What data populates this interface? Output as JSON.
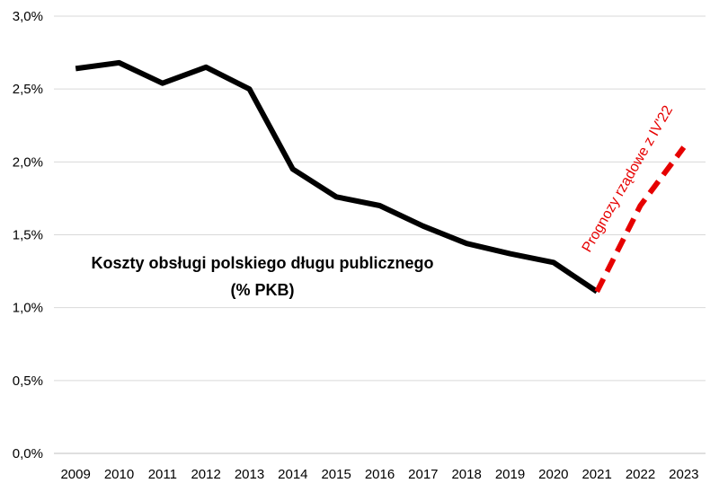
{
  "chart_data": {
    "type": "line",
    "title_lines": [
      "Koszty obsługi polskiego długu publicznego",
      "(% PKB)"
    ],
    "xlabel": "",
    "ylabel": "",
    "x": [
      "2009",
      "2010",
      "2011",
      "2012",
      "2013",
      "2014",
      "2015",
      "2016",
      "2017",
      "2018",
      "2019",
      "2020",
      "2021",
      "2022",
      "2023"
    ],
    "ylim": [
      0,
      3.0
    ],
    "y_ticks": [
      0.0,
      0.5,
      1.0,
      1.5,
      2.0,
      2.5,
      3.0
    ],
    "y_tick_labels": [
      "0,0%",
      "0,5%",
      "1,0%",
      "1,5%",
      "2,0%",
      "2,5%",
      "3,0%"
    ],
    "grid": true,
    "legend": "none",
    "series": [
      {
        "style": "solid",
        "color": "#000000",
        "x": [
          "2009",
          "2010",
          "2011",
          "2012",
          "2013",
          "2014",
          "2015",
          "2016",
          "2017",
          "2018",
          "2019",
          "2020",
          "2021"
        ],
        "values": [
          2.64,
          2.68,
          2.54,
          2.65,
          2.5,
          1.95,
          1.76,
          1.7,
          1.56,
          1.44,
          1.37,
          1.31,
          1.11
        ]
      },
      {
        "style": "dashed",
        "color": "#e60000",
        "x": [
          "2021",
          "2022",
          "2023"
        ],
        "values": [
          1.11,
          1.7,
          2.1
        ]
      }
    ],
    "annotation": {
      "text": "Prognozy rządowe z IV'22",
      "color": "#e60000"
    }
  }
}
